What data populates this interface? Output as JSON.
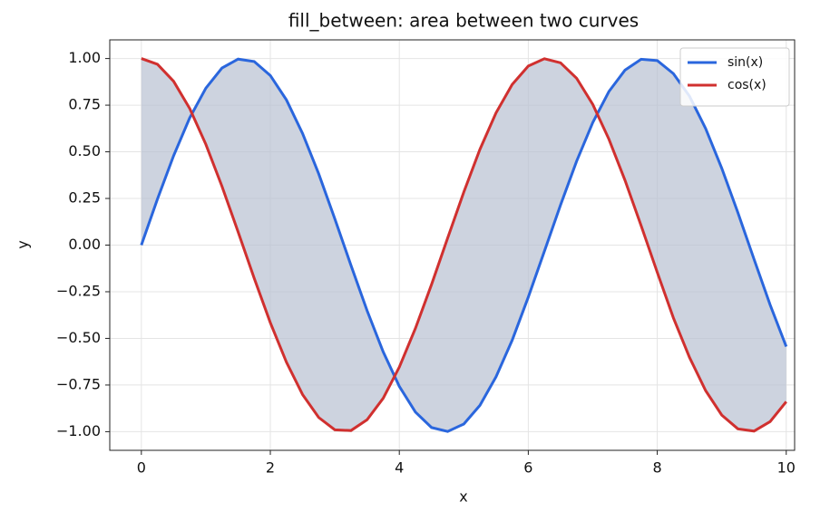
{
  "chart_data": {
    "type": "line",
    "title": "fill_between: area between two curves",
    "xlabel": "x",
    "ylabel": "y",
    "x": [
      0,
      0.25,
      0.5,
      0.75,
      1,
      1.25,
      1.5,
      1.75,
      2,
      2.25,
      2.5,
      2.75,
      3,
      3.25,
      3.5,
      3.75,
      4,
      4.25,
      4.5,
      4.75,
      5,
      5.25,
      5.5,
      5.75,
      6,
      6.25,
      6.5,
      6.75,
      7,
      7.25,
      7.5,
      7.75,
      8,
      8.25,
      8.5,
      8.75,
      9,
      9.25,
      9.5,
      9.75,
      10
    ],
    "series": [
      {
        "name": "sin(x)",
        "color": "#2a66dd",
        "values": [
          0,
          0.247,
          0.479,
          0.682,
          0.841,
          0.949,
          0.997,
          0.984,
          0.909,
          0.778,
          0.598,
          0.382,
          0.141,
          -0.108,
          -0.351,
          -0.572,
          -0.757,
          -0.895,
          -0.978,
          -0.999,
          -0.959,
          -0.859,
          -0.706,
          -0.51,
          -0.279,
          -0.033,
          0.215,
          0.45,
          0.657,
          0.823,
          0.938,
          0.996,
          0.989,
          0.919,
          0.798,
          0.625,
          0.412,
          0.174,
          -0.075,
          -0.32,
          -0.544
        ]
      },
      {
        "name": "cos(x)",
        "color": "#d0302f",
        "values": [
          1,
          0.969,
          0.878,
          0.732,
          0.54,
          0.315,
          0.071,
          -0.178,
          -0.416,
          -0.628,
          -0.801,
          -0.924,
          -0.99,
          -0.994,
          -0.936,
          -0.821,
          -0.654,
          -0.446,
          -0.211,
          0.038,
          0.284,
          0.513,
          0.709,
          0.861,
          0.96,
          0.999,
          0.977,
          0.894,
          0.754,
          0.568,
          0.347,
          0.104,
          -0.146,
          -0.39,
          -0.602,
          -0.78,
          -0.911,
          -0.985,
          -0.997,
          -0.946,
          -0.839
        ]
      }
    ],
    "fill_between": {
      "color": "#b8c0d2"
    },
    "xlim": [
      -0.49,
      10.13
    ],
    "ylim": [
      -1.1,
      1.1
    ],
    "xticks": [
      0,
      2,
      4,
      6,
      8,
      10
    ],
    "yticks": [
      {
        "value": -1,
        "label": "−1.00"
      },
      {
        "value": -0.75,
        "label": "−0.75"
      },
      {
        "value": -0.5,
        "label": "−0.50"
      },
      {
        "value": -0.25,
        "label": "−0.25"
      },
      {
        "value": 0,
        "label": "0.00"
      },
      {
        "value": 0.25,
        "label": "0.25"
      },
      {
        "value": 0.5,
        "label": "0.50"
      },
      {
        "value": 0.75,
        "label": "0.75"
      },
      {
        "value": 1,
        "label": "1.00"
      }
    ],
    "grid": true,
    "legend": "upper right"
  }
}
